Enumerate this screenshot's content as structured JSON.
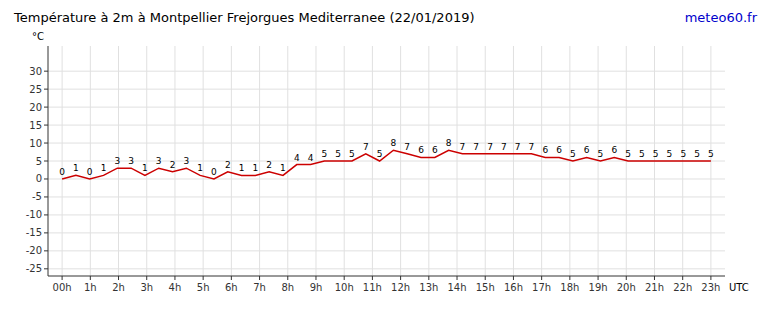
{
  "chart_data": {
    "type": "line",
    "title": "Température à 2m à Montpellier Frejorgues Mediterranee (22/01/2019)",
    "annotations": [
      {
        "text": "meteo60.fr",
        "color": "#0000cc"
      }
    ],
    "y_label": "°C",
    "x_label": "UTC",
    "x": [
      0,
      0.489362,
      0.978723,
      1.468085,
      1.957447,
      2.446809,
      2.93617,
      3.425532,
      3.914894,
      4.404255,
      4.893617,
      5.382979,
      5.87234,
      6.361702,
      6.851064,
      7.340426,
      7.829787,
      8.319149,
      8.808511,
      9.297872,
      9.787234,
      10.276596,
      10.765957,
      11.255319,
      11.744681,
      12.234043,
      12.723404,
      13.212766,
      13.702128,
      14.191489,
      14.680851,
      15.170213,
      15.659574,
      16.148936,
      16.638298,
      17.12766,
      17.617021,
      18.106383,
      18.595745,
      19.085106,
      19.574468,
      20.06383,
      20.553191,
      21.042553,
      21.531915,
      22.021277,
      22.510638,
      23
    ],
    "values": [
      0,
      1,
      0,
      1,
      3,
      3,
      1,
      3,
      2,
      3,
      1,
      0,
      2,
      1,
      1,
      2,
      1,
      4,
      4,
      5,
      5,
      5,
      7,
      5,
      8,
      7,
      6,
      6,
      8,
      7,
      7,
      7,
      7,
      7,
      7,
      6,
      6,
      5,
      6,
      5,
      6,
      5,
      5,
      5,
      5,
      5,
      5,
      5
    ],
    "color": "#cc0000",
    "data_labels": true,
    "xlim": [
      -0.5,
      23.5
    ],
    "xticks": [
      {
        "value": 0,
        "label": "00h"
      },
      {
        "value": 1,
        "label": "1h"
      },
      {
        "value": 2,
        "label": "2h"
      },
      {
        "value": 3,
        "label": "3h"
      },
      {
        "value": 4,
        "label": "4h"
      },
      {
        "value": 5,
        "label": "5h"
      },
      {
        "value": 6,
        "label": "6h"
      },
      {
        "value": 7,
        "label": "7h"
      },
      {
        "value": 8,
        "label": "8h"
      },
      {
        "value": 9,
        "label": "9h"
      },
      {
        "value": 10,
        "label": "10h"
      },
      {
        "value": 11,
        "label": "11h"
      },
      {
        "value": 12,
        "label": "12h"
      },
      {
        "value": 13,
        "label": "13h"
      },
      {
        "value": 14,
        "label": "14h"
      },
      {
        "value": 15,
        "label": "15h"
      },
      {
        "value": 16,
        "label": "16h"
      },
      {
        "value": 17,
        "label": "17h"
      },
      {
        "value": 18,
        "label": "18h"
      },
      {
        "value": 19,
        "label": "19h"
      },
      {
        "value": 20,
        "label": "20h"
      },
      {
        "value": 21,
        "label": "21h"
      },
      {
        "value": 22,
        "label": "22h"
      },
      {
        "value": 23,
        "label": "23h"
      }
    ],
    "ylim": [
      -27,
      37
    ],
    "yticks": [
      -25,
      -20,
      -15,
      -10,
      -5,
      0,
      5,
      10,
      15,
      20,
      25,
      30
    ],
    "grid": true
  }
}
